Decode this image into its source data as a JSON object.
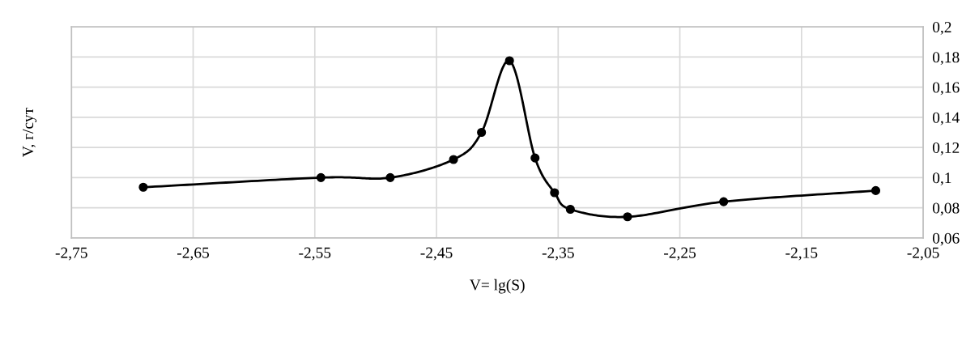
{
  "chart_data": {
    "type": "line",
    "xlabel": "V= lg(S)",
    "ylabel": "V, г/сут",
    "x": [
      -2.691,
      -2.545,
      -2.488,
      -2.436,
      -2.413,
      -2.39,
      -2.369,
      -2.353,
      -2.34,
      -2.293,
      -2.214,
      -2.089
    ],
    "series": [
      {
        "color": "#000000",
        "values": [
          0.0936,
          0.1,
          0.1,
          0.112,
          0.13,
          0.1775,
          0.113,
          0.09,
          0.079,
          0.074,
          0.084,
          0.0914
        ]
      }
    ],
    "marker": "circle",
    "line_style": "solid",
    "grid": true,
    "legend": false,
    "xlim": [
      -2.75,
      -2.05
    ],
    "ylim": [
      0.06,
      0.2
    ],
    "xticks": [
      {
        "value": -2.75,
        "label": "-2,75"
      },
      {
        "value": -2.65,
        "label": "-2,65"
      },
      {
        "value": -2.55,
        "label": "-2,55"
      },
      {
        "value": -2.45,
        "label": "-2,45"
      },
      {
        "value": -2.35,
        "label": "-2,35"
      },
      {
        "value": -2.25,
        "label": "-2,25"
      },
      {
        "value": -2.15,
        "label": "-2,15"
      },
      {
        "value": -2.05,
        "label": "-2,05"
      }
    ],
    "yticks": [
      {
        "value": 0.06,
        "label": "0,06"
      },
      {
        "value": 0.08,
        "label": "0,08"
      },
      {
        "value": 0.1,
        "label": "0,1"
      },
      {
        "value": 0.12,
        "label": "0,12"
      },
      {
        "value": 0.14,
        "label": "0,14"
      },
      {
        "value": 0.16,
        "label": "0,16"
      },
      {
        "value": 0.18,
        "label": "0,18"
      },
      {
        "value": 0.2,
        "label": "0,2"
      }
    ]
  }
}
